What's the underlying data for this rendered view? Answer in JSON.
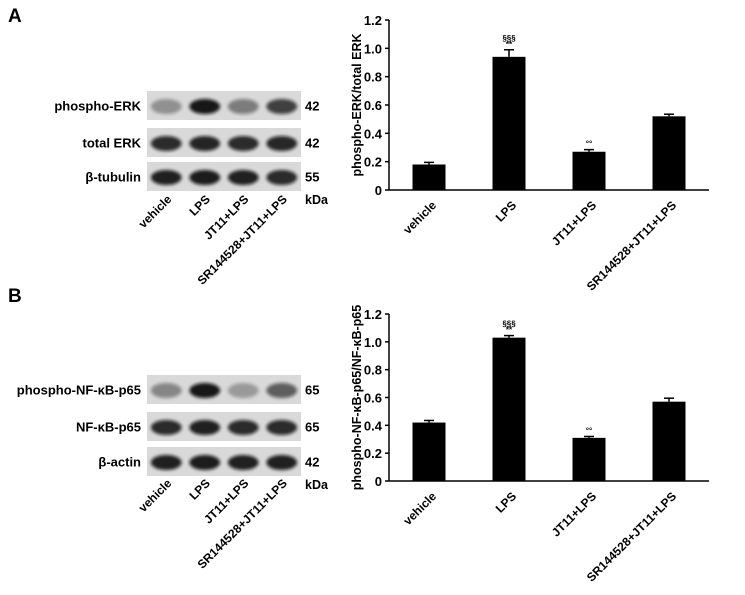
{
  "panels": [
    {
      "letter": "A",
      "blots": [
        {
          "label": "phospho-ERK",
          "kda": "42",
          "intensity": [
            0.35,
            0.95,
            0.45,
            0.75
          ]
        },
        {
          "label": "total ERK",
          "kda": "42",
          "intensity": [
            0.85,
            0.88,
            0.85,
            0.87
          ]
        },
        {
          "label": "β-tubulin",
          "kda": "55",
          "intensity": [
            0.9,
            0.92,
            0.9,
            0.85
          ]
        }
      ],
      "kda_unit": "kDa",
      "lanes": [
        "vehicle",
        "LPS",
        "JT11+LPS",
        "SR144528+JT11+LPS"
      ]
    },
    {
      "letter": "B",
      "blots": [
        {
          "label": "phospho-NF-κB-p65",
          "kda": "65",
          "intensity": [
            0.4,
            0.95,
            0.3,
            0.6
          ]
        },
        {
          "label": "NF-κB-p65",
          "kda": "65",
          "intensity": [
            0.85,
            0.9,
            0.85,
            0.85
          ]
        },
        {
          "label": "β-actin",
          "kda": "42",
          "intensity": [
            0.9,
            0.92,
            0.9,
            0.9
          ]
        }
      ],
      "kda_unit": "kDa",
      "lanes": [
        "vehicle",
        "LPS",
        "JT11+LPS",
        "SR144528+JT11+LPS"
      ]
    }
  ],
  "chart_data": [
    {
      "type": "bar",
      "categories": [
        "vehicle",
        "LPS",
        "JT11+LPS",
        "SR144528+JT11+LPS"
      ],
      "values": [
        0.18,
        0.94,
        0.27,
        0.52
      ],
      "errors": [
        0.015,
        0.05,
        0.015,
        0.015
      ],
      "annotations": [
        {
          "category": "LPS",
          "lines": [
            "§§§",
            "**"
          ]
        },
        {
          "category": "JT11+LPS",
          "lines": [
            "°°"
          ]
        }
      ],
      "ylabel": "phospho-ERK/total ERK",
      "ylim": [
        0,
        1.2
      ],
      "yticks": [
        "0",
        "0.2",
        "0.4",
        "0.6",
        "0.8",
        "1.0",
        "1.2"
      ],
      "bar_color": "#000000"
    },
    {
      "type": "bar",
      "categories": [
        "vehicle",
        "LPS",
        "JT11+LPS",
        "SR144528+JT11+LPS"
      ],
      "values": [
        0.42,
        1.03,
        0.31,
        0.57
      ],
      "errors": [
        0.015,
        0.015,
        0.01,
        0.025
      ],
      "annotations": [
        {
          "category": "LPS",
          "lines": [
            "§§§",
            "**"
          ]
        },
        {
          "category": "JT11+LPS",
          "lines": [
            "°°"
          ]
        }
      ],
      "ylabel": "phospho-NF-κB-p65/NF-κB-p65",
      "ylim": [
        0,
        1.2
      ],
      "yticks": [
        "0",
        "0.2",
        "0.4",
        "0.6",
        "0.8",
        "1.0",
        "1.2"
      ],
      "bar_color": "#000000"
    }
  ]
}
